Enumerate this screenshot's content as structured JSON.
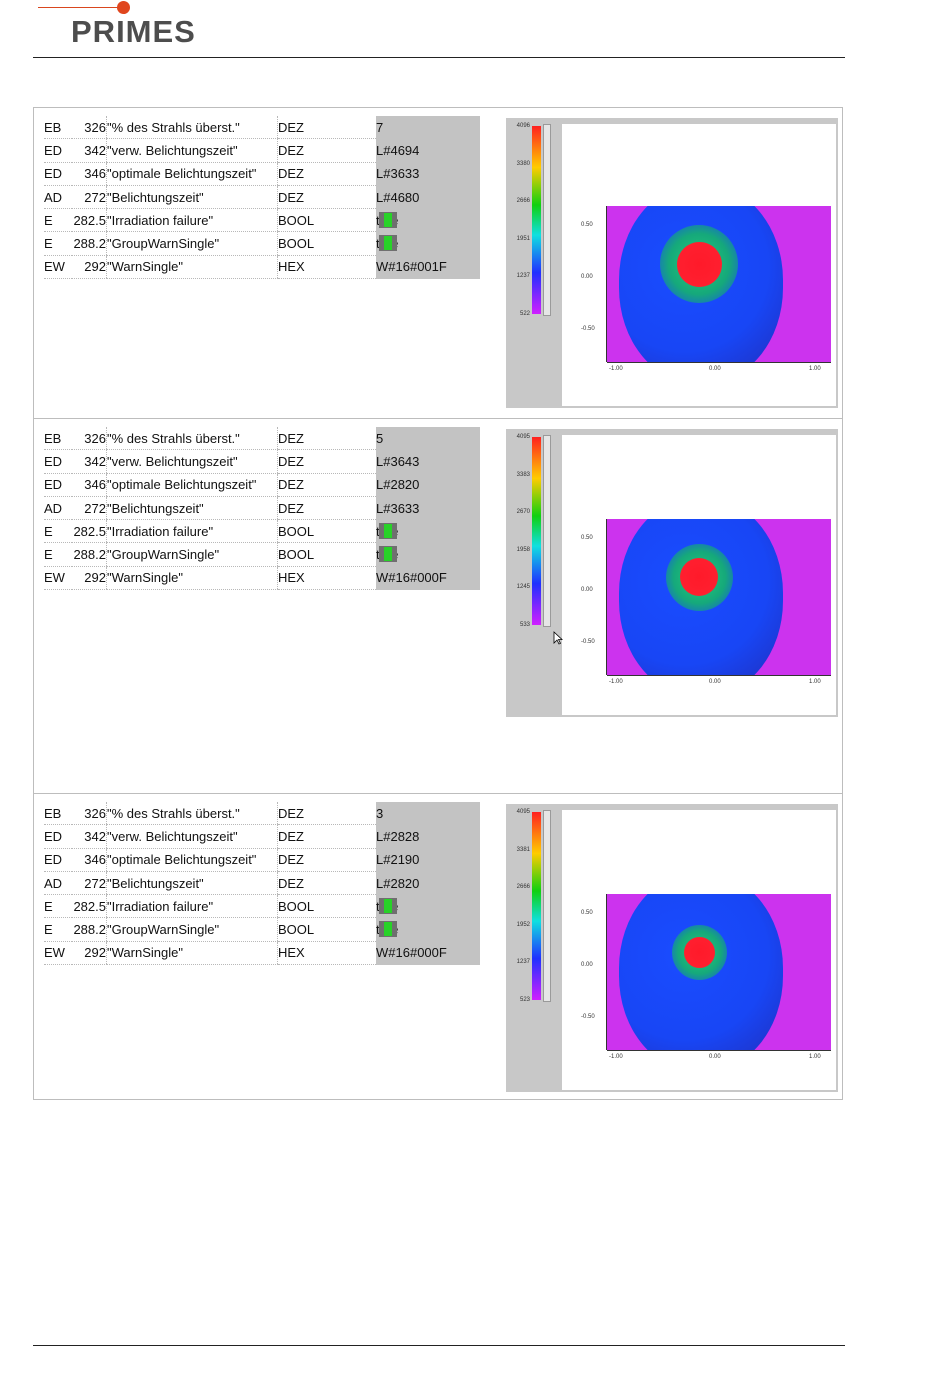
{
  "header": {
    "logo_text": "PRIMES"
  },
  "panels": [
    {
      "rows": [
        {
          "type": "EB",
          "addr": "326",
          "symbol": "\"% des Strahls überst.\"",
          "format": "DEZ",
          "value": "7",
          "bool": false
        },
        {
          "type": "ED",
          "addr": "342",
          "symbol": "\"verw. Belichtungszeit\"",
          "format": "DEZ",
          "value": "L#4694",
          "bool": false
        },
        {
          "type": "ED",
          "addr": "346",
          "symbol": "\"optimale Belichtungszeit\"",
          "format": "DEZ",
          "value": "L#3633",
          "bool": false
        },
        {
          "type": "AD",
          "addr": "272",
          "symbol": "\"Belichtungszeit\"",
          "format": "DEZ",
          "value": "L#4680",
          "bool": false
        },
        {
          "type": "E",
          "addr": "282.5",
          "symbol": "\"Irradiation failure\"",
          "format": "BOOL",
          "value": "true",
          "bool": true
        },
        {
          "type": "E",
          "addr": "288.2",
          "symbol": "\"GroupWarnSingle\"",
          "format": "BOOL",
          "value": "true",
          "bool": true
        },
        {
          "type": "EW",
          "addr": "292",
          "symbol": "\"WarnSingle\"",
          "format": "HEX",
          "value": "W#16#001F",
          "bool": false
        }
      ],
      "beam": {
        "colorbar_ticks": [
          "4096",
          "3380",
          "2666",
          "1951",
          "1237",
          "522"
        ],
        "y_ticks": [
          "0.50",
          "0.00",
          "-0.50"
        ],
        "x_ticks": [
          "-1.00",
          "0.00",
          "1.00"
        ],
        "spot_size": 0.2
      }
    },
    {
      "rows": [
        {
          "type": "EB",
          "addr": "326",
          "symbol": "\"% des Strahls überst.\"",
          "format": "DEZ",
          "value": "5",
          "bool": false
        },
        {
          "type": "ED",
          "addr": "342",
          "symbol": "\"verw. Belichtungszeit\"",
          "format": "DEZ",
          "value": "L#3643",
          "bool": false
        },
        {
          "type": "ED",
          "addr": "346",
          "symbol": "\"optimale Belichtungszeit\"",
          "format": "DEZ",
          "value": "L#2820",
          "bool": false
        },
        {
          "type": "AD",
          "addr": "272",
          "symbol": "\"Belichtungszeit\"",
          "format": "DEZ",
          "value": "L#3633",
          "bool": false
        },
        {
          "type": "E",
          "addr": "282.5",
          "symbol": "\"Irradiation failure\"",
          "format": "BOOL",
          "value": "true",
          "bool": true
        },
        {
          "type": "E",
          "addr": "288.2",
          "symbol": "\"GroupWarnSingle\"",
          "format": "BOOL",
          "value": "true",
          "bool": true
        },
        {
          "type": "EW",
          "addr": "292",
          "symbol": "\"WarnSingle\"",
          "format": "HEX",
          "value": "W#16#000F",
          "bool": false
        }
      ],
      "beam": {
        "colorbar_ticks": [
          "4095",
          "3383",
          "2670",
          "1958",
          "1245",
          "533"
        ],
        "y_ticks": [
          "0.50",
          "0.00",
          "-0.50"
        ],
        "x_ticks": [
          "-1.00",
          "0.00",
          "1.00"
        ],
        "spot_size": 0.17
      }
    },
    {
      "rows": [
        {
          "type": "EB",
          "addr": "326",
          "symbol": "\"% des Strahls überst.\"",
          "format": "DEZ",
          "value": "3",
          "bool": false
        },
        {
          "type": "ED",
          "addr": "342",
          "symbol": "\"verw. Belichtungszeit\"",
          "format": "DEZ",
          "value": "L#2828",
          "bool": false
        },
        {
          "type": "ED",
          "addr": "346",
          "symbol": "\"optimale Belichtungszeit\"",
          "format": "DEZ",
          "value": "L#2190",
          "bool": false
        },
        {
          "type": "AD",
          "addr": "272",
          "symbol": "\"Belichtungszeit\"",
          "format": "DEZ",
          "value": "L#2820",
          "bool": false
        },
        {
          "type": "E",
          "addr": "282.5",
          "symbol": "\"Irradiation failure\"",
          "format": "BOOL",
          "value": "true",
          "bool": true
        },
        {
          "type": "E",
          "addr": "288.2",
          "symbol": "\"GroupWarnSingle\"",
          "format": "BOOL",
          "value": "true",
          "bool": true
        },
        {
          "type": "EW",
          "addr": "292",
          "symbol": "\"WarnSingle\"",
          "format": "HEX",
          "value": "W#16#000F",
          "bool": false
        }
      ],
      "beam": {
        "colorbar_ticks": [
          "4095",
          "3381",
          "2666",
          "1952",
          "1237",
          "523"
        ],
        "y_ticks": [
          "0.50",
          "0.00",
          "-0.50"
        ],
        "x_ticks": [
          "-1.00",
          "0.00",
          "1.00"
        ],
        "spot_size": 0.14
      }
    }
  ]
}
